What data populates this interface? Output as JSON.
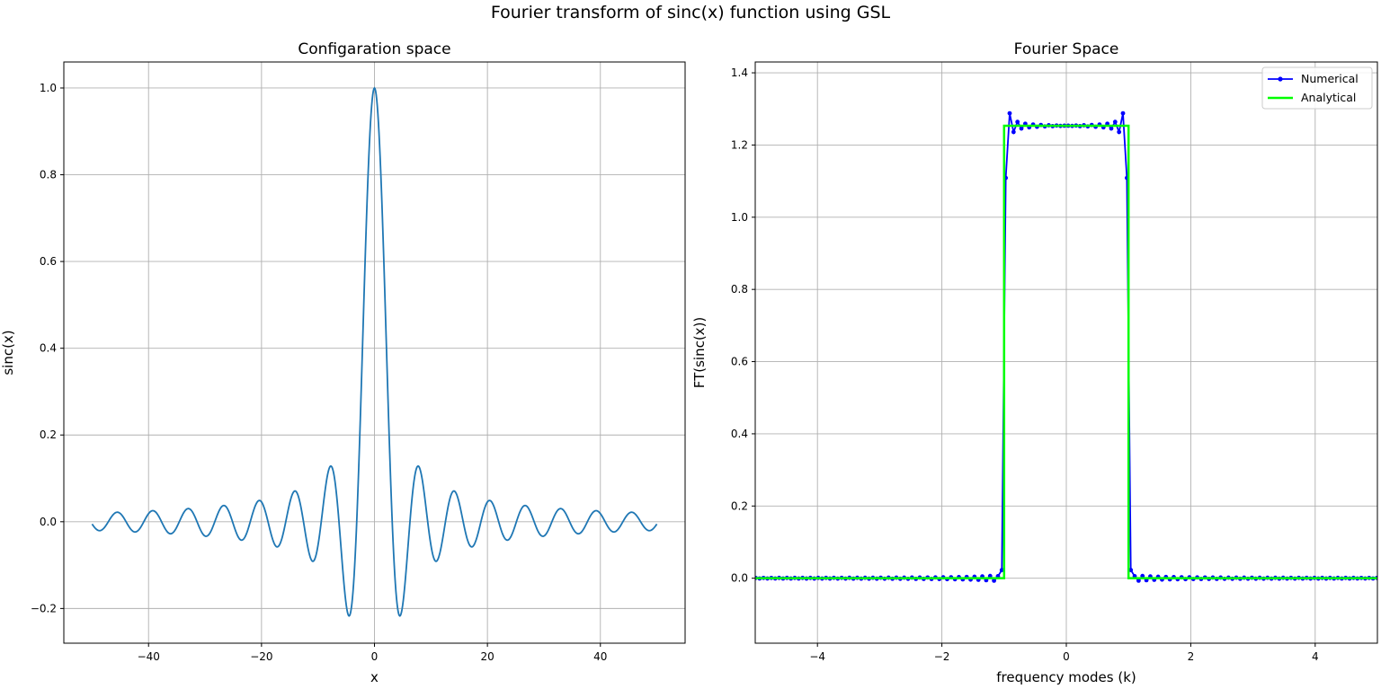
{
  "figure": {
    "suptitle": "Fourier transform of sinc(x) function using GSL"
  },
  "chart_data": [
    {
      "type": "line",
      "title": "Configaration space",
      "xlabel": "x",
      "ylabel": "sinc(x)",
      "xlim": [
        -55,
        55
      ],
      "ylim": [
        -0.28,
        1.06
      ],
      "xticks": [
        -40,
        -20,
        0,
        20,
        40
      ],
      "xtick_labels": [
        "−40",
        "−20",
        "0",
        "20",
        "40"
      ],
      "yticks": [
        -0.2,
        0.0,
        0.2,
        0.4,
        0.6,
        0.8,
        1.0
      ],
      "ytick_labels": [
        "−0.2",
        "0.0",
        "0.2",
        "0.4",
        "0.6",
        "0.8",
        "1.0"
      ],
      "grid": true,
      "series": [
        {
          "function": "sin(x)/x",
          "x_range": [
            -50,
            50
          ],
          "sample_count": 1001,
          "color": "#1f77b4"
        }
      ]
    },
    {
      "type": "line",
      "title": "Fourier Space",
      "xlabel": "frequency modes (k)",
      "ylabel": "FT(sinc(x))",
      "xlim": [
        -5,
        5
      ],
      "ylim": [
        -0.18,
        1.43
      ],
      "xticks": [
        -4,
        -2,
        0,
        2,
        4
      ],
      "xtick_labels": [
        "−4",
        "−2",
        "0",
        "2",
        "4"
      ],
      "yticks": [
        0.0,
        0.2,
        0.4,
        0.6,
        0.8,
        1.0,
        1.2,
        1.4
      ],
      "ytick_labels": [
        "0.0",
        "0.2",
        "0.4",
        "0.6",
        "0.8",
        "1.0",
        "1.2",
        "1.4"
      ],
      "grid": true,
      "legend": {
        "position": "upper right"
      },
      "series": [
        {
          "name": "Numerical",
          "color": "#0000ff",
          "marker": "circle",
          "k_step": 0.0628,
          "k_range": [
            -5,
            5
          ],
          "plateau_value": 1.2533,
          "cutoff": 1.0
        },
        {
          "name": "Analytical",
          "color": "#00ff00",
          "x": [
            -5,
            -1.0,
            -1.0,
            1.0,
            1.0,
            5
          ],
          "y": [
            0,
            0,
            1.2533,
            1.2533,
            0,
            0
          ]
        }
      ]
    }
  ]
}
